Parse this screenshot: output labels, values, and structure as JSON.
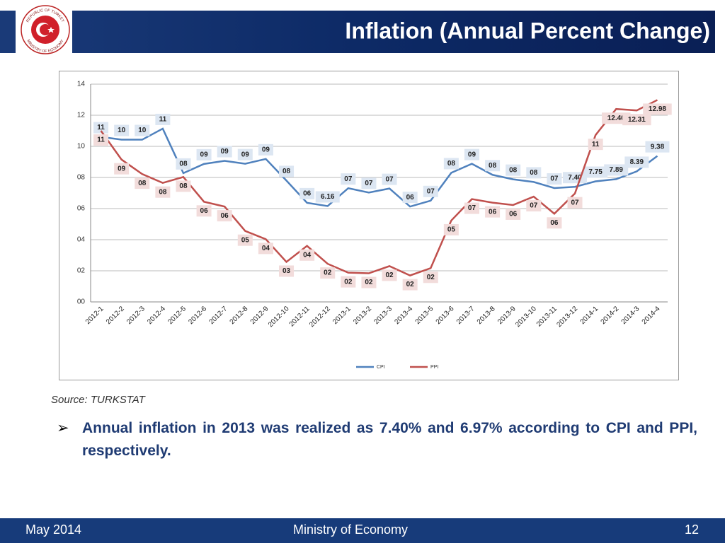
{
  "header": {
    "title": "Inflation (Annual Percent Change)",
    "logo": {
      "top": "REPUBLIC OF TURKEY",
      "bottom": "MINISTRY OF ECONOMY"
    }
  },
  "chart_data": {
    "type": "line",
    "categories": [
      "2012-1",
      "2012-2",
      "2012-3",
      "2012-4",
      "2012-5",
      "2012-6",
      "2012-7",
      "2012-8",
      "2012-9",
      "2012-10",
      "2012-11",
      "2012-12",
      "2013-1",
      "2013-2",
      "2013-3",
      "2013-4",
      "2013-5",
      "2013-6",
      "2013-7",
      "2013-8",
      "2013-9",
      "2013-10",
      "2013-11",
      "2013-12",
      "2014-1",
      "2014-2",
      "2014-3",
      "2014-4"
    ],
    "series": [
      {
        "name": "CPI",
        "color": "#4f81bd",
        "values": [
          10.61,
          10.43,
          10.43,
          11.14,
          8.28,
          8.87,
          9.07,
          8.88,
          9.19,
          7.8,
          6.37,
          6.16,
          7.31,
          7.03,
          7.29,
          6.13,
          6.51,
          8.3,
          8.88,
          8.17,
          7.88,
          7.71,
          7.32,
          7.4,
          7.75,
          7.89,
          8.39,
          9.38
        ],
        "value_labels": [
          "11",
          "10",
          "10",
          "11",
          "08",
          "09",
          "09",
          "09",
          "09",
          "08",
          "06",
          "6.16",
          "07",
          "07",
          "07",
          "06",
          "07",
          "08",
          "09",
          "08",
          "08",
          "08",
          "07",
          "7.40",
          "7.75",
          "7.89",
          "8.39",
          "9.38"
        ]
      },
      {
        "name": "PPI",
        "color": "#c0504d",
        "values": [
          11.0,
          9.15,
          8.22,
          7.65,
          8.03,
          6.44,
          6.13,
          4.56,
          4.03,
          2.57,
          3.6,
          2.45,
          1.88,
          1.84,
          2.3,
          1.7,
          2.17,
          5.23,
          6.61,
          6.38,
          6.23,
          6.77,
          5.67,
          6.97,
          10.72,
          12.4,
          12.31,
          12.98
        ],
        "value_labels": [
          "11",
          "09",
          "08",
          "08",
          "08",
          "06",
          "06",
          "05",
          "04",
          "03",
          "04",
          "02",
          "02",
          "02",
          "02",
          "02",
          "02",
          "05",
          "07",
          "06",
          "06",
          "07",
          "06",
          "07",
          "11",
          "12.40",
          "12.31",
          "12.98"
        ]
      }
    ],
    "ylim": [
      0,
      14
    ],
    "yticks": [
      {
        "value": 0,
        "label": "00"
      },
      {
        "value": 2,
        "label": "02"
      },
      {
        "value": 4,
        "label": "04"
      },
      {
        "value": 6,
        "label": "06"
      },
      {
        "value": 8,
        "label": "08"
      },
      10,
      12,
      14
    ],
    "grid": true,
    "legend": "bottom"
  },
  "source": "Source: TURKSTAT",
  "bullet": "Annual inflation in 2013 was realized as 7.40% and 6.97%  according to CPI and PPI, respectively.",
  "footer": {
    "date": "May 2014",
    "org": "Ministry of Economy",
    "page": "12"
  }
}
